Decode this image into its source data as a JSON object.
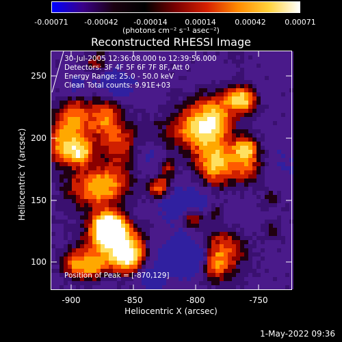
{
  "colorbar": {
    "ticks": [
      "-0.00071",
      "-0.00042",
      "-0.00014",
      "0.00014",
      "0.00042",
      "0.00071"
    ],
    "units": "(photons cm⁻² s⁻¹ asec⁻²)",
    "colors": [
      "#0000ff",
      "#3a0088",
      "#1a0010",
      "#000000",
      "#7a0000",
      "#d62000",
      "#ff8a00",
      "#ffd23a",
      "#ffffff"
    ]
  },
  "title": "Reconstructed RHESSI Image",
  "info": {
    "time": "30-Jul-2005 12:36:08.000 to 12:39:56.000",
    "detectors": "Detectors: 3F 4F 5F 6F 7F 8F, Att 0",
    "energy": "Energy Range: 25.0 - 50.0 keV",
    "clean": "Clean     Total counts: 9.91E+03",
    "peak": "Position of Peak = [-870,129]"
  },
  "axes": {
    "xlabel": "Heliocentric X (arcsec)",
    "ylabel": "Heliocentric Y (arcsec)",
    "xticks": [
      "-900",
      "-850",
      "-800",
      "-750"
    ],
    "yticks": [
      "250",
      "200",
      "150",
      "100"
    ]
  },
  "footer_date": "1-May-2022 09:36"
}
